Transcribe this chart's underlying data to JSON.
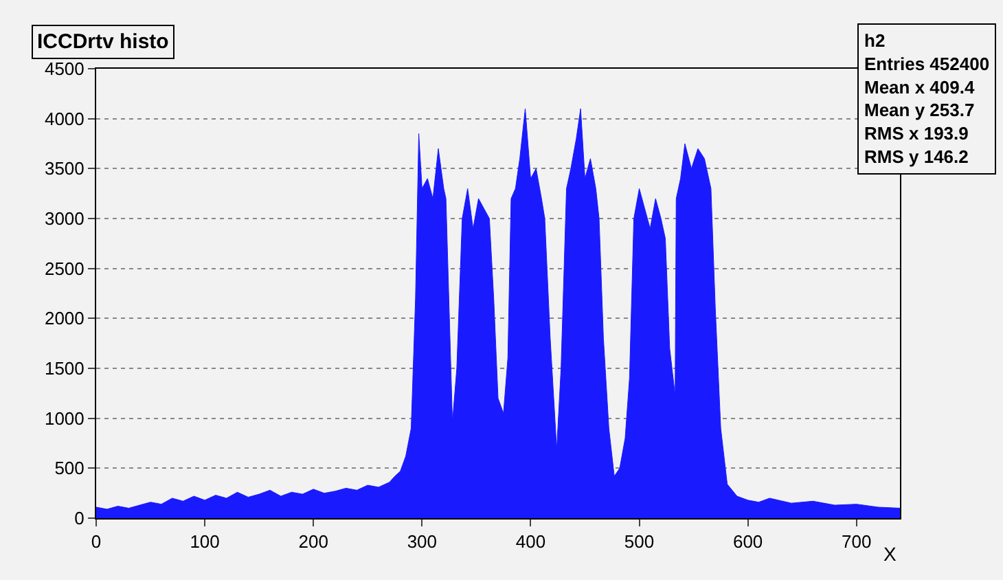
{
  "chart_data": {
    "type": "area",
    "title": "ICCDrtv histo",
    "xlabel": "X",
    "x": [
      0,
      10,
      20,
      30,
      40,
      50,
      60,
      70,
      80,
      90,
      100,
      110,
      120,
      130,
      140,
      150,
      160,
      170,
      180,
      190,
      200,
      210,
      220,
      230,
      240,
      250,
      260,
      270,
      275,
      280,
      285,
      290,
      294,
      297,
      300,
      305,
      310,
      315,
      320,
      322,
      326,
      328,
      332,
      337,
      342,
      347,
      352,
      357,
      362,
      366,
      370,
      375,
      379,
      382,
      386,
      390,
      395,
      400,
      405,
      410,
      413,
      418,
      424,
      428,
      433,
      437,
      442,
      446,
      450,
      455,
      460,
      463,
      467,
      472,
      477,
      482,
      487,
      491,
      495,
      500,
      505,
      510,
      515,
      520,
      524,
      528,
      533,
      534,
      538,
      542,
      548,
      554,
      560,
      566,
      570,
      575,
      581,
      590,
      600,
      610,
      620,
      640,
      660,
      680,
      700,
      720,
      740
    ],
    "series": [
      {
        "color": "#1a1aff",
        "values": [
          110,
          90,
          120,
          100,
          130,
          160,
          140,
          200,
          170,
          220,
          180,
          230,
          200,
          260,
          210,
          240,
          280,
          220,
          260,
          240,
          290,
          250,
          270,
          300,
          280,
          330,
          310,
          360,
          420,
          470,
          620,
          900,
          2200,
          3850,
          3300,
          3400,
          3200,
          3700,
          3300,
          3200,
          1700,
          960,
          1500,
          3000,
          3300,
          2900,
          3200,
          3100,
          3000,
          2200,
          1200,
          1050,
          1600,
          3200,
          3300,
          3600,
          4100,
          3400,
          3500,
          3200,
          3000,
          1800,
          690,
          1500,
          3300,
          3500,
          3800,
          4100,
          3400,
          3600,
          3300,
          3000,
          1800,
          900,
          420,
          500,
          800,
          1400,
          3000,
          3300,
          3100,
          2900,
          3200,
          3000,
          2800,
          1700,
          1230,
          3200,
          3400,
          3750,
          3500,
          3700,
          3600,
          3300,
          2100,
          900,
          340,
          220,
          180,
          160,
          200,
          150,
          170,
          130,
          140,
          110,
          100
        ]
      }
    ],
    "xlim": [
      0,
      740
    ],
    "xticks": [
      0,
      100,
      200,
      300,
      400,
      500,
      600,
      700
    ],
    "ylim": [
      0,
      4500
    ],
    "yticks": [
      0,
      500,
      1000,
      1500,
      2000,
      2500,
      3000,
      3500,
      4000,
      4500
    ],
    "grid": "y",
    "legend": false,
    "annotations": [
      "h2",
      "Entries 452400",
      "Mean x 409.4",
      "Mean y 253.7",
      "RMS x 193.9",
      "RMS y 146.2"
    ]
  }
}
